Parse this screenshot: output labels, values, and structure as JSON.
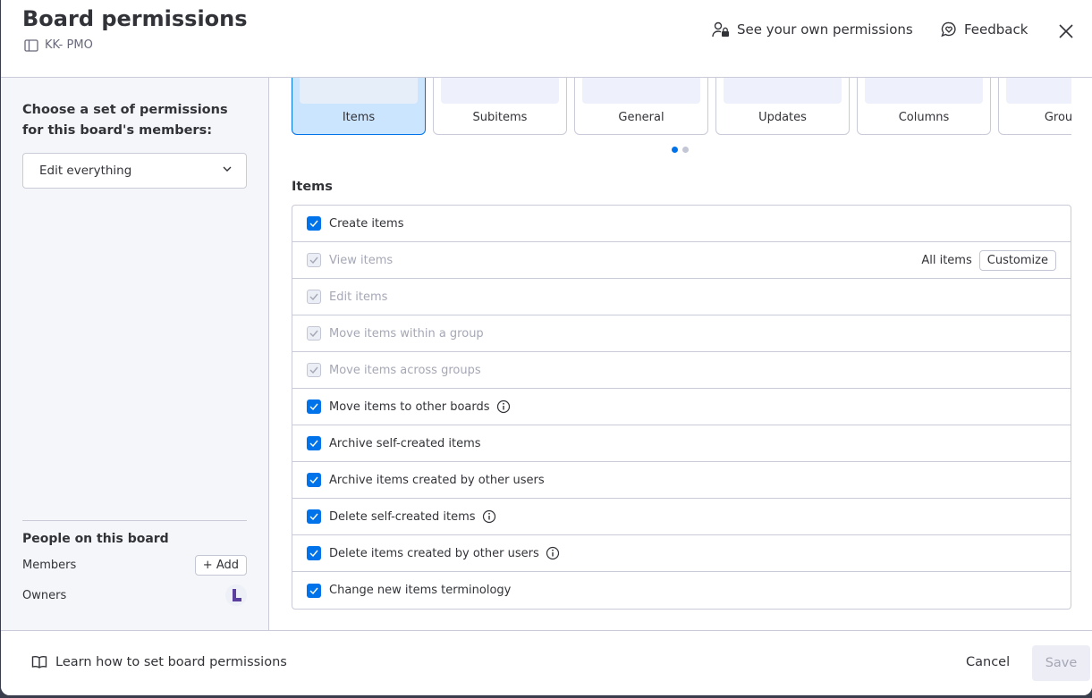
{
  "header": {
    "title": "Board permissions",
    "board_name": "KK- PMO",
    "see_own_permissions": "See your own permissions",
    "feedback": "Feedback"
  },
  "left": {
    "choose_label": "Choose a set of permissions for this board's members:",
    "selected_permission": "Edit everything",
    "people_title": "People on this board",
    "members_label": "Members",
    "add_label": "+ Add",
    "owners_label": "Owners"
  },
  "cards": [
    {
      "label": "Items",
      "selected": true
    },
    {
      "label": "Subitems"
    },
    {
      "label": "General"
    },
    {
      "label": "Updates"
    },
    {
      "label": "Columns"
    },
    {
      "label": "Groups"
    }
  ],
  "carousel": {
    "pages": 2,
    "current": 1
  },
  "section": {
    "title": "Items",
    "rows": [
      {
        "label": "Create items",
        "checked": true,
        "disabled": false
      },
      {
        "label": "View items",
        "checked": true,
        "disabled": true,
        "scope": "All items",
        "action": "Customize"
      },
      {
        "label": "Edit items",
        "checked": true,
        "disabled": true
      },
      {
        "label": "Move items within a group",
        "checked": true,
        "disabled": true
      },
      {
        "label": "Move items across groups",
        "checked": true,
        "disabled": true
      },
      {
        "label": "Move items to other boards",
        "checked": true,
        "disabled": false,
        "info": true
      },
      {
        "label": "Archive self-created items",
        "checked": true,
        "disabled": false
      },
      {
        "label": "Archive items created by other users",
        "checked": true,
        "disabled": false
      },
      {
        "label": "Delete self-created items",
        "checked": true,
        "disabled": false,
        "info": true
      },
      {
        "label": "Delete items created by other users",
        "checked": true,
        "disabled": false,
        "info": true
      },
      {
        "label": "Change new items terminology",
        "checked": true,
        "disabled": false
      }
    ]
  },
  "footer": {
    "learn": "Learn how to set board permissions",
    "cancel": "Cancel",
    "save": "Save"
  },
  "colors": {
    "accent": "#0073ea",
    "selected_card": "#cce5ff"
  }
}
